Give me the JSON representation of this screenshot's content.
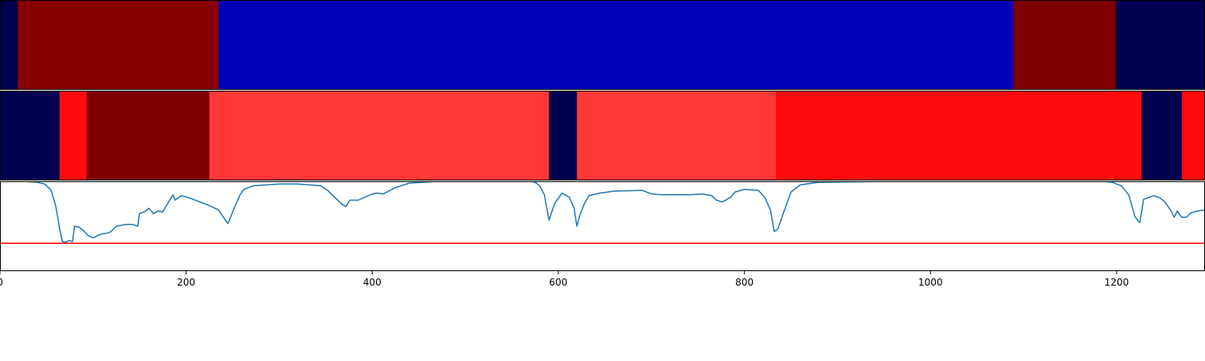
{
  "chart_data": [
    {
      "type": "heatmap",
      "name": "segment-strip-top",
      "segments": [
        {
          "start": 0,
          "end": 19,
          "color": "#000050"
        },
        {
          "start": 19,
          "end": 235,
          "color": "#880000"
        },
        {
          "start": 235,
          "end": 1089,
          "color": "#0000b8"
        },
        {
          "start": 1089,
          "end": 1199,
          "color": "#800000"
        },
        {
          "start": 1199,
          "end": 1295,
          "color": "#000050"
        }
      ]
    },
    {
      "type": "heatmap",
      "name": "segment-strip-middle",
      "segments": [
        {
          "start": 0,
          "end": 64,
          "color": "#000050"
        },
        {
          "start": 64,
          "end": 93,
          "color": "#ff0b0b"
        },
        {
          "start": 93,
          "end": 225,
          "color": "#800000"
        },
        {
          "start": 225,
          "end": 590,
          "color": "#ff3737"
        },
        {
          "start": 590,
          "end": 620,
          "color": "#000050"
        },
        {
          "start": 620,
          "end": 834,
          "color": "#ff3737"
        },
        {
          "start": 834,
          "end": 1227,
          "color": "#ff0b0b"
        },
        {
          "start": 1227,
          "end": 1270,
          "color": "#000050"
        },
        {
          "start": 1270,
          "end": 1295,
          "color": "#ff0b0b"
        }
      ]
    },
    {
      "type": "line",
      "name": "signal-line-plot",
      "xlim": [
        0,
        1295
      ],
      "ylim": [
        0,
        1
      ],
      "series": [
        {
          "name": "signal",
          "color": "#1f77b4",
          "points": [
            [
              0,
              1.0
            ],
            [
              25,
              1.0
            ],
            [
              40,
              0.99
            ],
            [
              48,
              0.97
            ],
            [
              55,
              0.9
            ],
            [
              60,
              0.72
            ],
            [
              64,
              0.48
            ],
            [
              67,
              0.33
            ],
            [
              70,
              0.32
            ],
            [
              74,
              0.34
            ],
            [
              78,
              0.33
            ],
            [
              80,
              0.5
            ],
            [
              85,
              0.49
            ],
            [
              90,
              0.45
            ],
            [
              94,
              0.4
            ],
            [
              100,
              0.37
            ],
            [
              108,
              0.41
            ],
            [
              118,
              0.43
            ],
            [
              125,
              0.5
            ],
            [
              135,
              0.52
            ],
            [
              143,
              0.52
            ],
            [
              148,
              0.5
            ],
            [
              150,
              0.64
            ],
            [
              155,
              0.66
            ],
            [
              160,
              0.7
            ],
            [
              165,
              0.64
            ],
            [
              170,
              0.67
            ],
            [
              175,
              0.66
            ],
            [
              180,
              0.75
            ],
            [
              186,
              0.85
            ],
            [
              188,
              0.79
            ],
            [
              195,
              0.84
            ],
            [
              205,
              0.81
            ],
            [
              215,
              0.77
            ],
            [
              225,
              0.73
            ],
            [
              235,
              0.68
            ],
            [
              240,
              0.6
            ],
            [
              245,
              0.53
            ],
            [
              250,
              0.66
            ],
            [
              258,
              0.85
            ],
            [
              262,
              0.91
            ],
            [
              272,
              0.95
            ],
            [
              300,
              0.97
            ],
            [
              320,
              0.97
            ],
            [
              345,
              0.95
            ],
            [
              352,
              0.9
            ],
            [
              362,
              0.8
            ],
            [
              368,
              0.74
            ],
            [
              372,
              0.72
            ],
            [
              376,
              0.79
            ],
            [
              385,
              0.79
            ],
            [
              398,
              0.85
            ],
            [
              404,
              0.87
            ],
            [
              412,
              0.86
            ],
            [
              425,
              0.93
            ],
            [
              440,
              0.98
            ],
            [
              470,
              1.0
            ],
            [
              520,
              1.0
            ],
            [
              570,
              1.0
            ],
            [
              575,
              0.99
            ],
            [
              580,
              0.95
            ],
            [
              585,
              0.85
            ],
            [
              590,
              0.57
            ],
            [
              596,
              0.75
            ],
            [
              604,
              0.87
            ],
            [
              612,
              0.82
            ],
            [
              617,
              0.7
            ],
            [
              620,
              0.5
            ],
            [
              623,
              0.62
            ],
            [
              628,
              0.75
            ],
            [
              633,
              0.84
            ],
            [
              645,
              0.87
            ],
            [
              660,
              0.89
            ],
            [
              690,
              0.9
            ],
            [
              695,
              0.88
            ],
            [
              700,
              0.86
            ],
            [
              712,
              0.85
            ],
            [
              740,
              0.85
            ],
            [
              755,
              0.86
            ],
            [
              765,
              0.84
            ],
            [
              770,
              0.79
            ],
            [
              776,
              0.77
            ],
            [
              785,
              0.82
            ],
            [
              790,
              0.88
            ],
            [
              800,
              0.91
            ],
            [
              815,
              0.9
            ],
            [
              822,
              0.82
            ],
            [
              828,
              0.68
            ],
            [
              832,
              0.44
            ],
            [
              836,
              0.47
            ],
            [
              842,
              0.65
            ],
            [
              850,
              0.88
            ],
            [
              860,
              0.96
            ],
            [
              880,
              0.99
            ],
            [
              960,
              1.0
            ],
            [
              1100,
              1.0
            ],
            [
              1185,
              1.0
            ],
            [
              1195,
              0.99
            ],
            [
              1205,
              0.95
            ],
            [
              1213,
              0.85
            ],
            [
              1220,
              0.6
            ],
            [
              1225,
              0.54
            ],
            [
              1229,
              0.8
            ],
            [
              1240,
              0.84
            ],
            [
              1246,
              0.82
            ],
            [
              1252,
              0.77
            ],
            [
              1258,
              0.68
            ],
            [
              1262,
              0.6
            ],
            [
              1265,
              0.67
            ],
            [
              1270,
              0.6
            ],
            [
              1275,
              0.6
            ],
            [
              1280,
              0.65
            ],
            [
              1287,
              0.67
            ],
            [
              1295,
              0.68
            ]
          ]
        },
        {
          "name": "threshold",
          "color": "#ff0000",
          "points": [
            [
              0,
              0.31
            ],
            [
              1295,
              0.31
            ]
          ]
        }
      ]
    }
  ],
  "x_axis": {
    "ticks": [
      {
        "value": 0,
        "label": "0"
      },
      {
        "value": 200,
        "label": "200"
      },
      {
        "value": 400,
        "label": "400"
      },
      {
        "value": 600,
        "label": "600"
      },
      {
        "value": 800,
        "label": "800"
      },
      {
        "value": 1000,
        "label": "1000"
      },
      {
        "value": 1200,
        "label": "1200"
      }
    ]
  },
  "frame_color": "#000000"
}
